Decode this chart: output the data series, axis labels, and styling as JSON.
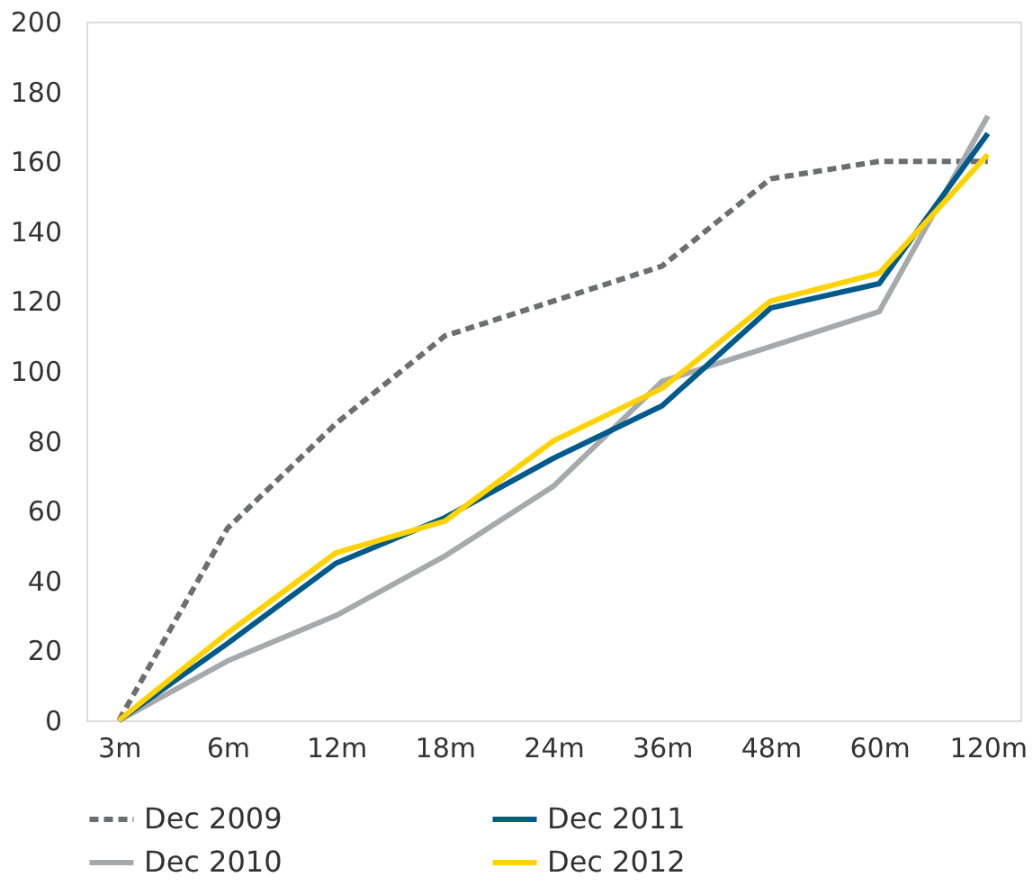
{
  "chart_data": {
    "type": "line",
    "categories": [
      "3m",
      "6m",
      "12m",
      "18m",
      "24m",
      "36m",
      "48m",
      "60m",
      "120m"
    ],
    "ylim": [
      0,
      200
    ],
    "yticks": [
      0,
      20,
      40,
      60,
      80,
      100,
      120,
      140,
      160,
      180,
      200
    ],
    "grid": false,
    "legend": "bottom",
    "marker": "none",
    "series": [
      {
        "name": "Dec 2009",
        "color": "#6d6e71",
        "line_style": "dashed",
        "values": [
          0,
          55,
          85,
          110,
          120,
          130,
          155,
          160,
          160
        ]
      },
      {
        "name": "Dec 2010",
        "color": "#a7a9ac",
        "values": [
          0,
          17,
          30,
          47,
          67,
          97,
          107,
          117,
          173
        ]
      },
      {
        "name": "Dec 2011",
        "color": "#005a8b",
        "values": [
          0,
          22,
          45,
          58,
          75,
          90,
          118,
          125,
          168
        ]
      },
      {
        "name": "Dec 2012",
        "color": "#ffd200",
        "values": [
          0,
          25,
          48,
          57,
          80,
          95,
          120,
          128,
          162
        ]
      }
    ]
  }
}
